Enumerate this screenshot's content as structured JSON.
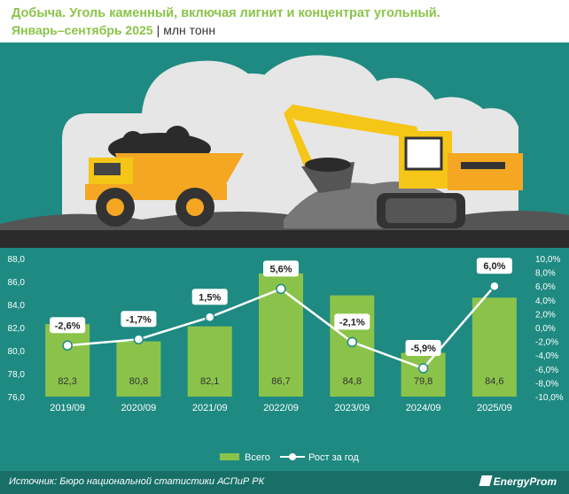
{
  "header": {
    "title": "Добыча. Уголь каменный, включая лигнит и концентрат угольный.",
    "period": "Январь–сентябрь 2025",
    "separator": "|",
    "unit": "млн тонн"
  },
  "footer": {
    "source": "Источник: Бюро национальной статистики АСПиР РК",
    "logo": "EnergyProm"
  },
  "colors": {
    "background": "#1e8a82",
    "bar": "#8bc34a",
    "line": "#ffffff",
    "title": "#8bc34a"
  },
  "illustration": {
    "icons": [
      "mining-truck-icon",
      "excavator-icon",
      "coal-pile-icon"
    ]
  },
  "chart_data": {
    "type": "bar",
    "categories": [
      "2019/09",
      "2020/09",
      "2021/09",
      "2022/09",
      "2023/09",
      "2024/09",
      "2025/09"
    ],
    "series": [
      {
        "name": "Всего",
        "type": "bar",
        "axis": "left",
        "values": [
          82.3,
          80.8,
          82.1,
          86.7,
          84.8,
          79.8,
          84.6
        ]
      },
      {
        "name": "Рост за год",
        "type": "line",
        "axis": "right",
        "values": [
          -2.6,
          -1.7,
          1.5,
          5.6,
          -2.1,
          -5.9,
          6.0
        ]
      }
    ],
    "bar_labels": [
      "82,3",
      "80,8",
      "82,1",
      "86,7",
      "84,8",
      "79,8",
      "84,6"
    ],
    "line_labels": [
      "-2,6%",
      "-1,7%",
      "1,5%",
      "5,6%",
      "-2,1%",
      "-5,9%",
      "6,0%"
    ],
    "ylim": [
      76,
      88
    ],
    "y_ticks": [
      "76,0",
      "78,0",
      "80,0",
      "82,0",
      "84,0",
      "86,0",
      "88,0"
    ],
    "y2lim": [
      -10,
      10
    ],
    "y2_ticks": [
      "-10,0%",
      "-8,0%",
      "-6,0%",
      "-4,0%",
      "-2,0%",
      "0,0%",
      "2,0%",
      "4,0%",
      "6,0%",
      "8,0%",
      "10,0%"
    ],
    "grid": false,
    "legend_position": "bottom-center"
  }
}
